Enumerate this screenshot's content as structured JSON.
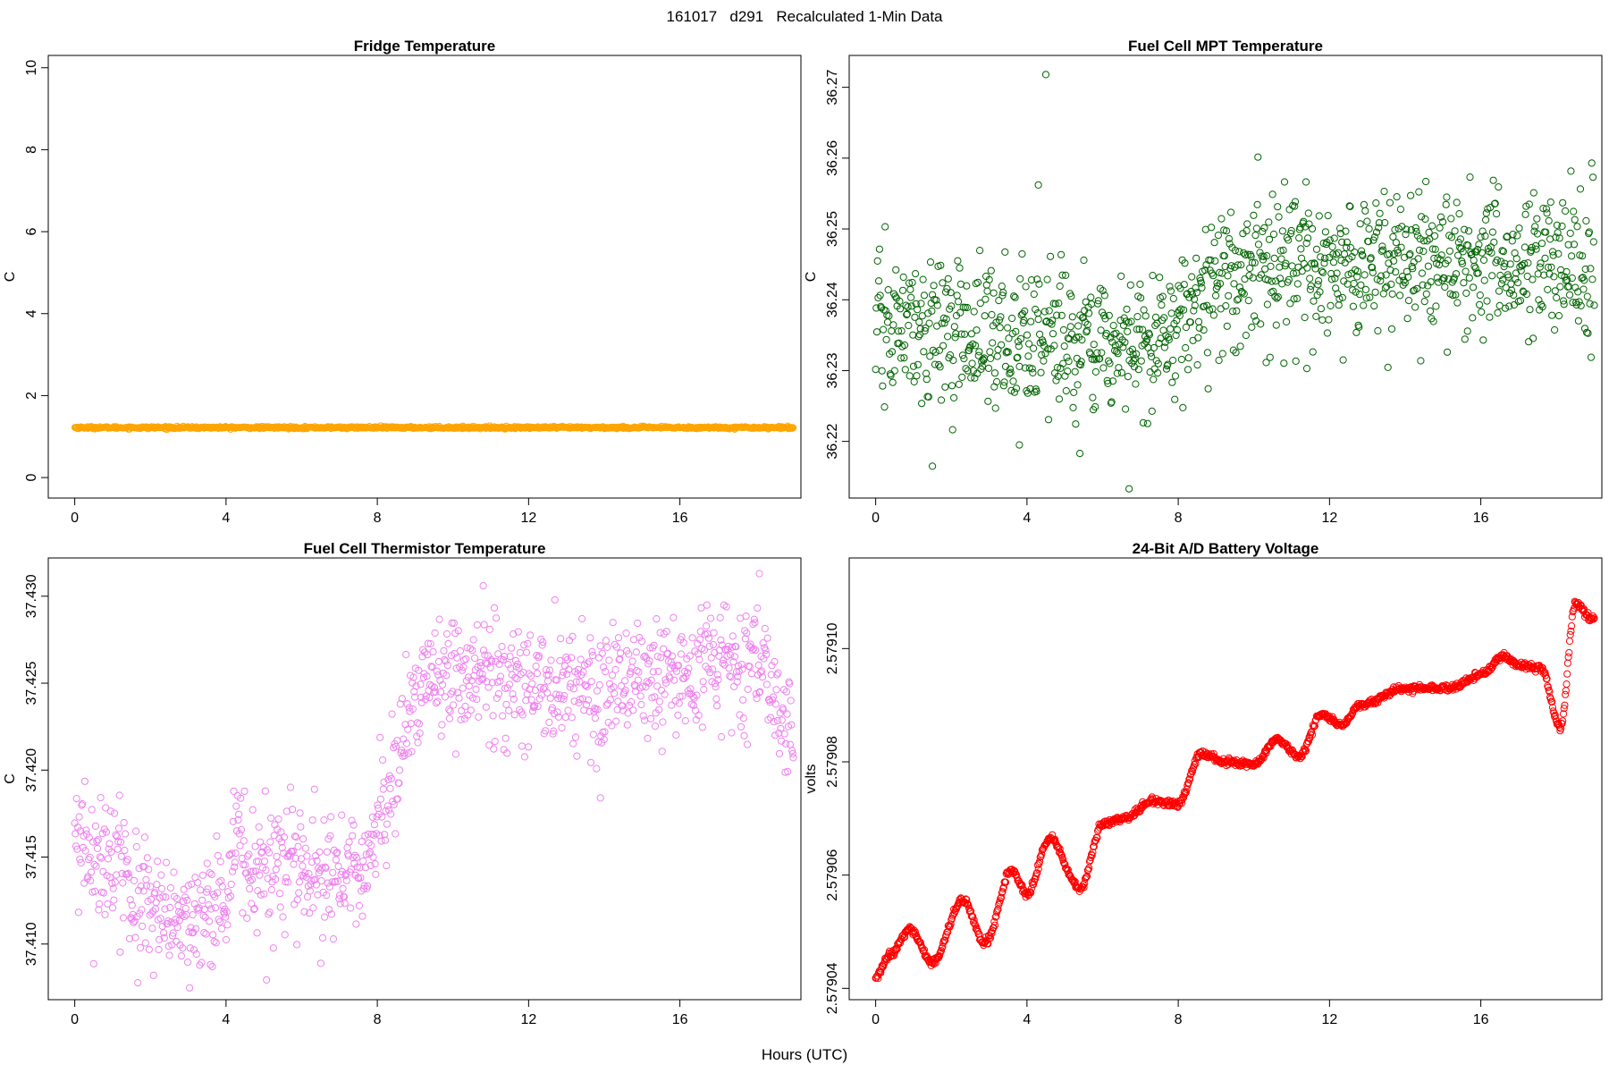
{
  "figure": {
    "suptitle": "161017   d291   Recalculated 1-Min Data",
    "common_xlabel": "Hours (UTC)"
  },
  "chart_data": [
    {
      "type": "scatter",
      "title": "Fridge Temperature",
      "xlabel": "",
      "ylabel": "C",
      "xlim": [
        -0.7,
        19.2
      ],
      "ylim": [
        -0.5,
        10.3
      ],
      "x_ticks": [
        0,
        4,
        8,
        12,
        16
      ],
      "y_ticks": [
        0,
        2,
        4,
        6,
        8,
        10
      ],
      "y_tick_labels": [
        "0",
        "2",
        "4",
        "6",
        "8",
        "10"
      ],
      "color": "#FFA500",
      "marker": "circle-open",
      "grid": false,
      "legend": "none",
      "pattern": "flat",
      "x_range": [
        0,
        19.0
      ],
      "y_center": 1.22,
      "noise": 0.015,
      "n_points": 1140
    },
    {
      "type": "scatter",
      "title": "Fuel Cell MPT Temperature",
      "xlabel": "",
      "ylabel": "C",
      "xlim": [
        -0.7,
        19.2
      ],
      "ylim": [
        36.212,
        36.2745
      ],
      "x_ticks": [
        0,
        4,
        8,
        12,
        16
      ],
      "y_ticks": [
        36.22,
        36.23,
        36.24,
        36.25,
        36.26,
        36.27
      ],
      "y_tick_labels": [
        "36.22",
        "36.23",
        "36.24",
        "36.25",
        "36.26",
        "36.27"
      ],
      "color": "#006400",
      "marker": "circle-open",
      "grid": false,
      "legend": "none",
      "pattern": "trend",
      "x_range": [
        0,
        19.0
      ],
      "trend": [
        [
          0,
          36.236
        ],
        [
          4,
          36.235
        ],
        [
          7,
          36.233
        ],
        [
          8,
          36.237
        ],
        [
          9,
          36.243
        ],
        [
          12,
          36.245
        ],
        [
          19,
          36.245
        ]
      ],
      "noise": 0.005,
      "n_points": 1140,
      "outliers": [
        [
          4.5,
          36.2718
        ],
        [
          1.5,
          36.2165
        ],
        [
          5.4,
          36.2183
        ],
        [
          6.7,
          36.2133
        ],
        [
          4.3,
          36.2562
        ],
        [
          11.4,
          36.2303
        ],
        [
          3.8,
          36.2195
        ]
      ]
    },
    {
      "type": "scatter",
      "title": "Fuel Cell Thermistor Temperature",
      "xlabel": "",
      "ylabel": "C",
      "xlim": [
        -0.7,
        19.2
      ],
      "ylim": [
        37.4068,
        37.4322
      ],
      "x_ticks": [
        0,
        4,
        8,
        12,
        16
      ],
      "y_ticks": [
        37.41,
        37.415,
        37.42,
        37.425,
        37.43
      ],
      "y_tick_labels": [
        "37.410",
        "37.415",
        "37.420",
        "37.425",
        "37.430"
      ],
      "color": "#EE82EE",
      "marker": "circle-open",
      "grid": false,
      "legend": "none",
      "pattern": "trend",
      "x_range": [
        0,
        19.0
      ],
      "trend": [
        [
          0,
          37.4155
        ],
        [
          1,
          37.415
        ],
        [
          2,
          37.4115
        ],
        [
          3,
          37.411
        ],
        [
          4,
          37.412
        ],
        [
          4.3,
          37.418
        ],
        [
          4.6,
          37.4135
        ],
        [
          5.5,
          37.4145
        ],
        [
          6.5,
          37.4135
        ],
        [
          7.5,
          37.414
        ],
        [
          8,
          37.417
        ],
        [
          8.6,
          37.4205
        ],
        [
          9.2,
          37.4255
        ],
        [
          12,
          37.425
        ],
        [
          15,
          37.425
        ],
        [
          18,
          37.426
        ],
        [
          19,
          37.422
        ]
      ],
      "noise": 0.0018,
      "n_points": 1140,
      "outliers": [
        [
          13.9,
          37.4184
        ],
        [
          18.1,
          37.4313
        ],
        [
          10.8,
          37.4306
        ]
      ]
    },
    {
      "type": "scatter",
      "title": "24-Bit A/D Battery Voltage",
      "xlabel": "",
      "ylabel": "volts",
      "xlim": [
        -0.7,
        19.2
      ],
      "ylim": [
        2.579038,
        2.579116
      ],
      "x_ticks": [
        0,
        4,
        8,
        12,
        16
      ],
      "y_ticks": [
        2.57904,
        2.57906,
        2.57908,
        2.5791
      ],
      "y_tick_labels": [
        "2.57904",
        "2.57906",
        "2.57908",
        "2.57910"
      ],
      "color": "#FF0000",
      "marker": "circle-open",
      "grid": false,
      "legend": "none",
      "pattern": "smooth",
      "x_range": [
        0,
        19.0
      ],
      "trend": [
        [
          0,
          2.579042
        ],
        [
          0.4,
          2.579046
        ],
        [
          0.9,
          2.5790505
        ],
        [
          1.5,
          2.5790445
        ],
        [
          2.3,
          2.5790555
        ],
        [
          2.9,
          2.579048
        ],
        [
          3.6,
          2.579061
        ],
        [
          4.0,
          2.5790565
        ],
        [
          4.6,
          2.5790665
        ],
        [
          5.4,
          2.5790575
        ],
        [
          6.0,
          2.579069
        ],
        [
          6.6,
          2.57907
        ],
        [
          7.3,
          2.579073
        ],
        [
          8.0,
          2.5790725
        ],
        [
          8.6,
          2.5790815
        ],
        [
          9.3,
          2.57908
        ],
        [
          10.0,
          2.5790795
        ],
        [
          10.6,
          2.579084
        ],
        [
          11.2,
          2.579081
        ],
        [
          11.8,
          2.5790885
        ],
        [
          12.3,
          2.5790865
        ],
        [
          12.8,
          2.57909
        ],
        [
          14.0,
          2.579093
        ],
        [
          15.2,
          2.579093
        ],
        [
          16.0,
          2.5790955
        ],
        [
          16.6,
          2.5790985
        ],
        [
          17.1,
          2.579097
        ],
        [
          17.6,
          2.5790965
        ],
        [
          18.1,
          2.579086
        ],
        [
          18.5,
          2.579108
        ],
        [
          18.9,
          2.5791055
        ]
      ],
      "n_points": 1140
    }
  ]
}
